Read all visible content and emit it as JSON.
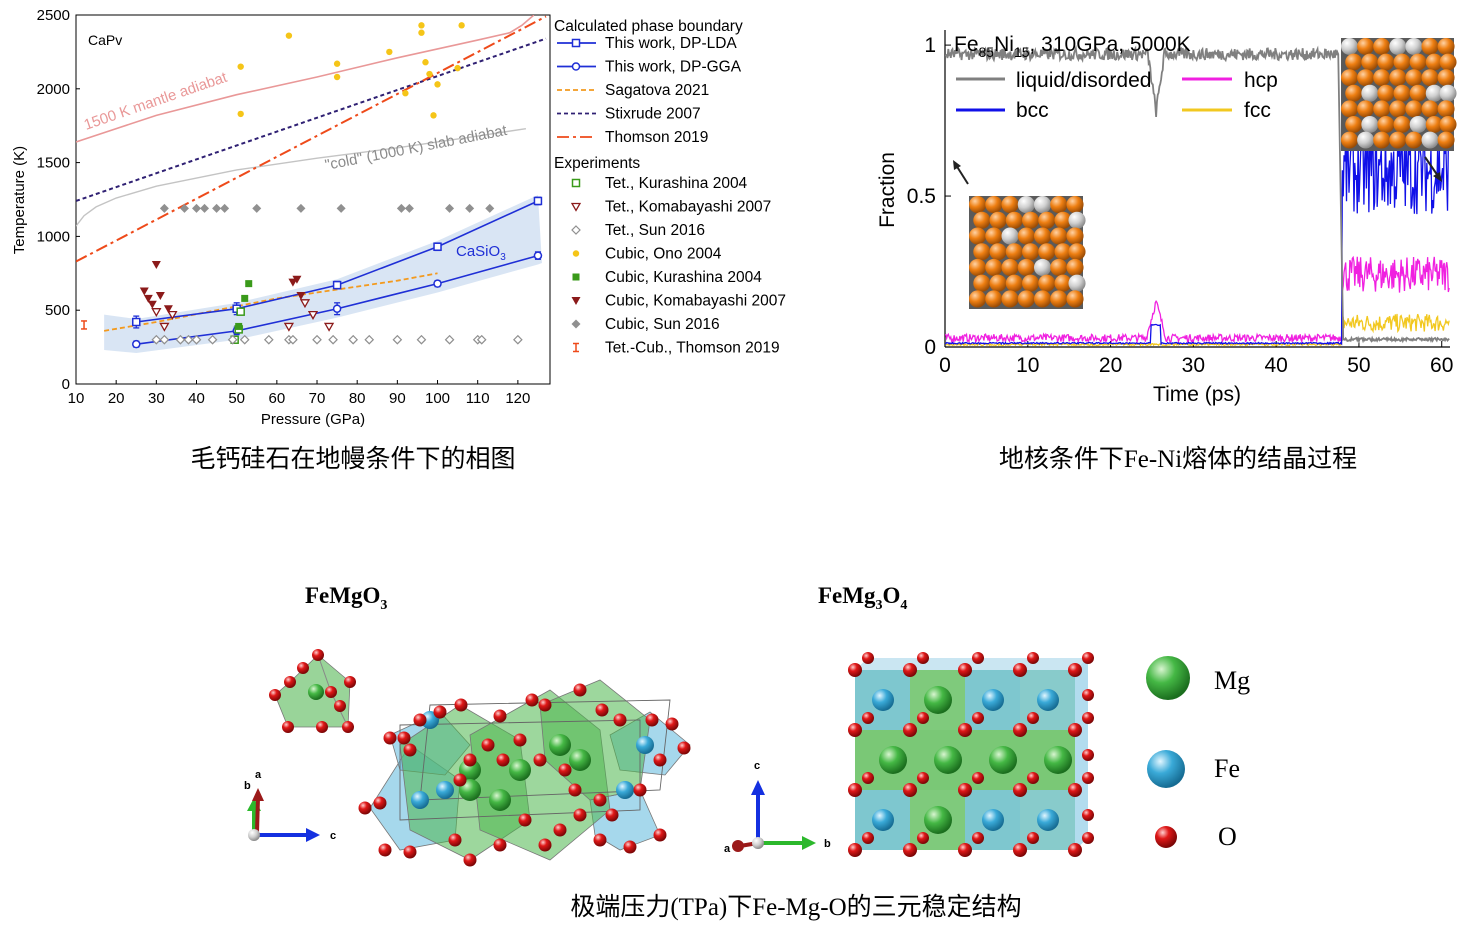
{
  "colors": {
    "lda": "#1f2fd6",
    "gga": "#1f2fd6",
    "sagatova": "#f39a1e",
    "stixrude": "#2f2073",
    "thomson": "#ee4a1a",
    "mantle_adiabat": "#e99898",
    "slab_adiabat": "#c4c4c4",
    "kurashina": "#3a9a1a",
    "komabayashi": "#8b1a1a",
    "sun": "#909090",
    "ono": "#f5c518",
    "band": "#cfdff1",
    "liquid": "#808080",
    "bcc": "#1010e8",
    "hcp": "#f020e0",
    "fcc": "#f2c820",
    "mg_atom": "#39a83a",
    "fe_atom": "#3aaad8",
    "o_atom": "#d81414"
  },
  "chart_data": [
    {
      "type": "line+scatter",
      "title": "CaPv",
      "xlabel": "Pressure (GPa)",
      "ylabel": "Temperature (K)",
      "xlim": [
        10,
        128
      ],
      "ylim": [
        0,
        2500
      ],
      "xticks": [
        10,
        20,
        30,
        40,
        50,
        60,
        70,
        80,
        90,
        100,
        110,
        120
      ],
      "yticks": [
        0,
        500,
        1000,
        1500,
        2000,
        2500
      ],
      "caption": "毛钙硅石在地幔条件下的相图",
      "annotations": {
        "mantle_adiabat": "1500 K mantle adiabat",
        "slab_adiabat": "\"cold\" (1000 K) slab adiabat",
        "casio3_main": "CaSiO",
        "casio3_sub": "3"
      },
      "legend": {
        "group1_title": "Calculated phase boundary",
        "lines": [
          "This work, DP-LDA",
          "This work, DP-GGA",
          "Sagatova 2021",
          "Stixrude 2007",
          "Thomson 2019"
        ],
        "group2_title": "Experiments",
        "experiments": [
          "Tet., Kurashina 2004",
          "Tet., Komabayashi 2007",
          "Tet., Sun 2016",
          "Cubic, Ono 2004",
          "Cubic, Kurashina 2004",
          "Cubic, Komabayashi 2007",
          "Cubic, Sun 2016",
          "Tet.-Cub., Thomson 2019"
        ]
      },
      "series": [
        {
          "name": "This work, DP-LDA",
          "style": "line-square",
          "x": [
            25,
            50,
            75,
            100,
            125
          ],
          "y": [
            420,
            510,
            670,
            930,
            1240
          ],
          "err": [
            40,
            40,
            25,
            25,
            25
          ]
        },
        {
          "name": "This work, DP-GGA",
          "style": "line-circle",
          "x": [
            25,
            50,
            75,
            100,
            125
          ],
          "y": [
            270,
            360,
            510,
            680,
            870
          ],
          "err": [
            20,
            25,
            40,
            20,
            25
          ]
        },
        {
          "name": "Sagatova 2021",
          "style": "dashed",
          "x": [
            17,
            30,
            45,
            60,
            75,
            90,
            100
          ],
          "y": [
            360,
            420,
            500,
            580,
            640,
            700,
            750
          ]
        },
        {
          "name": "Stixrude 2007",
          "style": "dotted",
          "x": [
            10,
            127
          ],
          "y": [
            1240,
            2340
          ]
        },
        {
          "name": "Thomson 2019",
          "style": "dashdot",
          "x": [
            10,
            127
          ],
          "y": [
            830,
            2490
          ]
        },
        {
          "name": "1500 K mantle adiabat",
          "style": "curve",
          "x": [
            10,
            30,
            50,
            70,
            90,
            110,
            118,
            121,
            124
          ],
          "y": [
            1640,
            1820,
            1960,
            2080,
            2210,
            2330,
            2380,
            2430,
            2500
          ]
        },
        {
          "name": "\"cold\" (1000 K) slab adiabat",
          "style": "curve",
          "x": [
            10,
            12,
            15,
            20,
            30,
            50,
            70,
            90,
            110,
            122
          ],
          "y": [
            1070,
            1140,
            1200,
            1260,
            1340,
            1450,
            1530,
            1600,
            1680,
            1730
          ]
        },
        {
          "name": "Tet., Kurashina 2004",
          "marker": "open-square",
          "x": [
            49.5,
            50.5,
            51
          ],
          "y": [
            300,
            370,
            490
          ]
        },
        {
          "name": "Tet., Komabayashi 2007",
          "marker": "open-triangle",
          "x": [
            30,
            32,
            34,
            63,
            67,
            69,
            73
          ],
          "y": [
            490,
            390,
            470,
            390,
            550,
            470,
            390
          ]
        },
        {
          "name": "Tet., Sun 2016",
          "marker": "open-diamond",
          "x": [
            30,
            32,
            36,
            38,
            40,
            44,
            49,
            52,
            58,
            63,
            64,
            70,
            74,
            79,
            83,
            90,
            96,
            103,
            110,
            111,
            120
          ],
          "y": [
            300,
            300,
            300,
            300,
            300,
            300,
            300,
            300,
            300,
            300,
            300,
            300,
            300,
            300,
            300,
            300,
            300,
            300,
            300,
            300,
            300
          ]
        },
        {
          "name": "Cubic, Ono 2004",
          "marker": "dot",
          "x": [
            51,
            51,
            63,
            75,
            75,
            88,
            92,
            96,
            96,
            97,
            98,
            99,
            100,
            106,
            105
          ],
          "y": [
            1830,
            2150,
            2360,
            2170,
            2080,
            2250,
            1970,
            2380,
            2430,
            2180,
            2100,
            1820,
            2030,
            2430,
            2140
          ]
        },
        {
          "name": "Cubic, Kurashina 2004",
          "marker": "filled-square",
          "x": [
            50.5,
            52,
            53
          ],
          "y": [
            390,
            580,
            680
          ]
        },
        {
          "name": "Cubic, Komabayashi 2007",
          "marker": "filled-triangle",
          "x": [
            27,
            28,
            29,
            30,
            31,
            33,
            64,
            65,
            66
          ],
          "y": [
            630,
            580,
            540,
            810,
            600,
            510,
            690,
            710,
            600
          ]
        },
        {
          "name": "Cubic, Sun 2016",
          "marker": "filled-diamond",
          "x": [
            32,
            37,
            40,
            42,
            45,
            47,
            55,
            66,
            76,
            91,
            93,
            103,
            108,
            113
          ],
          "y": [
            1190,
            1190,
            1190,
            1190,
            1190,
            1190,
            1190,
            1190,
            1190,
            1190,
            1190,
            1190,
            1190,
            1190
          ]
        },
        {
          "name": "Tet.-Cub., Thomson 2019",
          "marker": "errorbar",
          "x": [
            12
          ],
          "y": [
            400
          ],
          "err": [
            20
          ]
        }
      ]
    },
    {
      "type": "line",
      "title_main": "Fe",
      "title_sub1": "85",
      "title_mid": "Ni",
      "title_sub2": "15",
      "title_rest": ", 310GPa, 5000K",
      "xlabel": "Time (ps)",
      "ylabel": "Fraction",
      "xlim": [
        0,
        61
      ],
      "ylim": [
        0,
        1.05
      ],
      "xticks": [
        0,
        10,
        20,
        30,
        40,
        50,
        60
      ],
      "yticks": [
        0,
        0.5,
        1
      ],
      "caption": "地核条件下Fe-Ni熔体的结晶过程",
      "legend": [
        "liquid/disorded",
        "hcp",
        "bcc",
        "fcc"
      ],
      "series": [
        {
          "name": "liquid/disorded",
          "pre_transition": 0.97,
          "dip_at": 25.5,
          "dip_to": 0.78,
          "transition_at": 47.5,
          "post_transition": 0.02
        },
        {
          "name": "bcc",
          "pre_transition": 0.01,
          "transition_at": 48,
          "post_transition": 0.58
        },
        {
          "name": "hcp",
          "pre_transition": 0.03,
          "peak_at": 25.5,
          "peak_to": 0.15,
          "transition_at": 48,
          "post_transition": 0.24
        },
        {
          "name": "fcc",
          "pre_transition": 0.005,
          "transition_at": 48,
          "post_transition": 0.08
        }
      ]
    }
  ],
  "bottom_panel": {
    "left_title_main": "FeMgO",
    "left_title_sub": "3",
    "right_title_main1": "FeMg",
    "right_title_sub1": "3",
    "right_title_main2": "O",
    "right_title_sub2": "4",
    "axes_left": {
      "a": "a",
      "b": "b",
      "c": "c"
    },
    "axes_right": {
      "a": "a",
      "b": "b",
      "c": "c"
    },
    "legend": [
      "Mg",
      "Fe",
      "O"
    ],
    "caption": "极端压力(TPa)下Fe-Mg-O的三元稳定结构"
  }
}
